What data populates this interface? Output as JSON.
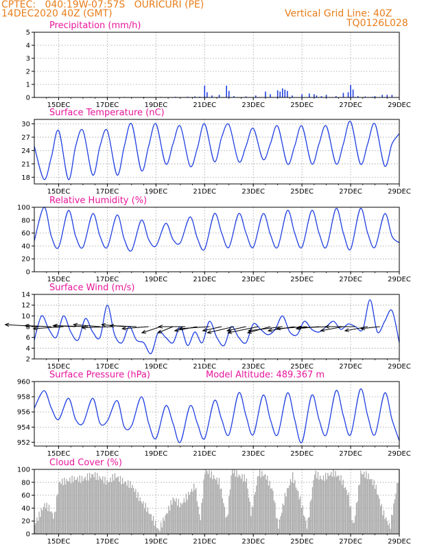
{
  "header": {
    "line1": "CPTEC:   040:19W-07:57S   OURICURI (PE)",
    "line2": "14DEC2020 40Z (GMT)",
    "right1": "Vertical Grid Line: 40Z",
    "right2": "TQ0126L028"
  },
  "colors": {
    "header": "#e87d1a",
    "title": "#e8159b",
    "series": "#1f3fe0",
    "cloud": "#a8a8a8"
  },
  "chart_data": [
    {
      "id": "precip",
      "type": "bar",
      "title": "Precipitation (mm/h)",
      "ylim": [
        0,
        5
      ],
      "yticks": [
        0,
        1,
        2,
        3,
        4,
        5
      ],
      "xticks": [
        "15DEC",
        "17DEC",
        "19DEC",
        "21DEC",
        "23DEC",
        "25DEC",
        "27DEC",
        "29DEC"
      ],
      "grid": true,
      "x": [
        14.0,
        14.6,
        15.4,
        16.3,
        17.0,
        17.7,
        18.5,
        19.2,
        19.8,
        20.3,
        20.6,
        20.8,
        21.0,
        21.1,
        21.3,
        21.6,
        21.9,
        22.0,
        22.2,
        22.7,
        23.1,
        23.5,
        23.7,
        24.0,
        24.1,
        24.2,
        24.3,
        24.4,
        24.6,
        25.0,
        25.3,
        25.5,
        25.6,
        25.8,
        26.0,
        26.4,
        26.7,
        26.9,
        27.0,
        27.1,
        27.3,
        27.6,
        27.9,
        28.0,
        28.3,
        28.5,
        28.7
      ],
      "values": [
        0.04,
        0.04,
        0.04,
        0.04,
        0.04,
        0.04,
        0.04,
        0.04,
        0.05,
        0.06,
        0.08,
        0.06,
        0.9,
        0.4,
        0.15,
        0.2,
        0.9,
        0.5,
        0.1,
        0.08,
        0.15,
        0.45,
        0.25,
        0.55,
        0.45,
        0.7,
        0.6,
        0.5,
        0.15,
        0.25,
        0.3,
        0.25,
        0.15,
        0.1,
        0.2,
        0.1,
        0.35,
        0.4,
        0.95,
        0.6,
        0.1,
        0.08,
        0.05,
        0.1,
        0.2,
        0.2,
        0.2
      ]
    },
    {
      "id": "temp",
      "type": "line",
      "title": "Surface Temperature (nC)",
      "ylim": [
        16.5,
        31
      ],
      "yticks": [
        18,
        21,
        24,
        27,
        30
      ],
      "xticks": [
        "15DEC",
        "17DEC",
        "19DEC",
        "21DEC",
        "23DEC",
        "25DEC",
        "27DEC",
        "29DEC"
      ],
      "grid": true,
      "x": [
        14.0,
        14.4,
        14.7,
        15.0,
        15.4,
        15.7,
        16.0,
        16.4,
        16.7,
        17.0,
        17.4,
        17.7,
        18.0,
        18.4,
        18.7,
        19.0,
        19.4,
        19.7,
        20.0,
        20.4,
        20.7,
        21.0,
        21.4,
        21.7,
        22.0,
        22.4,
        22.7,
        23.0,
        23.4,
        23.7,
        24.0,
        24.4,
        24.7,
        25.0,
        25.4,
        25.7,
        26.0,
        26.4,
        26.7,
        27.0,
        27.4,
        27.7,
        28.0,
        28.4,
        28.7,
        29.0
      ],
      "values": [
        25,
        17.5,
        22.5,
        28.5,
        17.5,
        25,
        28.5,
        18.5,
        25,
        28.5,
        18.5,
        25,
        30,
        19.5,
        25,
        30,
        21,
        25.5,
        29.5,
        20.5,
        24.5,
        30,
        21.5,
        27,
        29.8,
        21.5,
        25,
        29,
        22,
        25.5,
        29.5,
        21,
        25,
        29.5,
        21,
        25.5,
        29.5,
        21,
        25.5,
        30.5,
        21,
        25.5,
        30,
        20.5,
        25.5,
        27.8
      ]
    },
    {
      "id": "rh",
      "type": "line",
      "title": "Relative Humidity (%)",
      "ylim": [
        0,
        100
      ],
      "yticks": [
        0,
        20,
        40,
        60,
        80,
        100
      ],
      "xticks": [
        "15DEC",
        "17DEC",
        "19DEC",
        "21DEC",
        "23DEC",
        "25DEC",
        "27DEC",
        "29DEC"
      ],
      "grid": true,
      "x": [
        14.0,
        14.4,
        14.7,
        15.0,
        15.4,
        15.7,
        16.0,
        16.4,
        16.7,
        17.0,
        17.4,
        17.7,
        18.0,
        18.4,
        18.7,
        19.0,
        19.4,
        19.7,
        20.0,
        20.4,
        20.7,
        21.0,
        21.4,
        21.7,
        22.0,
        22.4,
        22.7,
        23.0,
        23.4,
        23.7,
        24.0,
        24.4,
        24.7,
        25.0,
        25.4,
        25.7,
        26.0,
        26.4,
        26.7,
        27.0,
        27.4,
        27.7,
        28.0,
        28.4,
        28.7,
        29.0
      ],
      "values": [
        48,
        100,
        55,
        38,
        95,
        55,
        38,
        90,
        55,
        38,
        88,
        50,
        33,
        80,
        50,
        40,
        75,
        50,
        45,
        85,
        52,
        35,
        90,
        60,
        38,
        90,
        60,
        38,
        90,
        58,
        38,
        95,
        60,
        38,
        95,
        60,
        38,
        98,
        60,
        35,
        98,
        60,
        38,
        90,
        55,
        45
      ]
    },
    {
      "id": "wind",
      "type": "line",
      "title": "Surface Wind (m/s)",
      "ylim": [
        2,
        14
      ],
      "yticks": [
        2,
        4,
        6,
        8,
        10,
        12,
        14
      ],
      "xticks": [
        "15DEC",
        "17DEC",
        "19DEC",
        "21DEC",
        "23DEC",
        "25DEC",
        "27DEC",
        "29DEC"
      ],
      "grid": true,
      "x": [
        14.0,
        14.3,
        14.6,
        14.9,
        15.2,
        15.5,
        15.8,
        16.1,
        16.4,
        16.7,
        17.0,
        17.3,
        17.6,
        17.9,
        18.2,
        18.5,
        18.8,
        19.1,
        19.4,
        19.7,
        20.0,
        20.3,
        20.6,
        20.9,
        21.2,
        21.5,
        21.8,
        22.1,
        22.4,
        22.7,
        23.0,
        23.3,
        23.6,
        23.9,
        24.2,
        24.5,
        24.8,
        25.1,
        25.4,
        25.7,
        26.0,
        26.3,
        26.6,
        26.9,
        27.2,
        27.5,
        27.8,
        28.1,
        28.4,
        28.7,
        29.0
      ],
      "values": [
        5.5,
        10,
        7.5,
        6,
        10,
        7,
        5.5,
        9.5,
        7,
        6,
        12,
        6.5,
        5,
        8,
        5.5,
        5,
        3,
        7,
        6,
        5,
        8,
        4.5,
        7,
        5,
        9,
        6,
        4.5,
        8,
        6,
        5,
        8.5,
        7.5,
        6.5,
        7.5,
        10,
        7,
        6.5,
        9,
        7.5,
        7,
        8,
        9,
        7.5,
        8.5,
        8,
        7.5,
        13,
        7,
        9,
        11,
        5
      ]
    },
    {
      "id": "press",
      "type": "line",
      "title": "Surface Pressure (hPa)",
      "annotation": "Model Altitude: 489.367 m",
      "ylim": [
        951.5,
        960
      ],
      "yticks": [
        952,
        954,
        956,
        958,
        960
      ],
      "xticks": [
        "15DEC",
        "17DEC",
        "19DEC",
        "21DEC",
        "23DEC",
        "25DEC",
        "27DEC",
        "29DEC"
      ],
      "grid": true,
      "x": [
        14.0,
        14.4,
        14.7,
        15.0,
        15.4,
        15.7,
        16.0,
        16.4,
        16.7,
        17.0,
        17.4,
        17.7,
        18.0,
        18.4,
        18.7,
        19.0,
        19.4,
        19.7,
        20.0,
        20.4,
        20.7,
        21.0,
        21.4,
        21.7,
        22.0,
        22.4,
        22.7,
        23.0,
        23.4,
        23.7,
        24.0,
        24.4,
        24.7,
        25.0,
        25.4,
        25.7,
        26.0,
        26.4,
        26.7,
        27.0,
        27.4,
        27.7,
        28.0,
        28.4,
        28.7,
        29.0
      ],
      "values": [
        956.5,
        958.8,
        956.5,
        955,
        957.8,
        955,
        954.5,
        957.8,
        954.5,
        954.8,
        957.5,
        954,
        954.2,
        958,
        954.5,
        952.5,
        956.8,
        954.5,
        952,
        956.8,
        954.5,
        952.5,
        957.5,
        955,
        953,
        958.5,
        955.5,
        953,
        958.2,
        955,
        953,
        958.5,
        955,
        952,
        958.2,
        955,
        953,
        958.8,
        955.5,
        953,
        959,
        955.5,
        953,
        958.5,
        955,
        952.2
      ]
    },
    {
      "id": "cloud",
      "type": "area",
      "title": "Cloud Cover (%)",
      "ylim": [
        0,
        100
      ],
      "yticks": [
        0,
        20,
        40,
        60,
        80,
        100
      ],
      "xticks": [
        "15DEC",
        "17DEC",
        "19DEC",
        "21DEC",
        "23DEC",
        "25DEC",
        "27DEC",
        "29DEC"
      ],
      "grid": true,
      "x": [
        14.0,
        14.2,
        14.4,
        14.6,
        14.8,
        15.0,
        15.3,
        15.6,
        16.0,
        16.4,
        16.8,
        17.0,
        17.3,
        17.6,
        18.0,
        18.3,
        18.6,
        18.9,
        19.1,
        19.4,
        19.7,
        20.0,
        20.3,
        20.6,
        20.8,
        21.0,
        21.3,
        21.6,
        21.9,
        22.1,
        22.4,
        22.7,
        22.9,
        23.2,
        23.5,
        23.8,
        24.0,
        24.3,
        24.6,
        24.9,
        25.2,
        25.5,
        25.8,
        26.0,
        26.3,
        26.6,
        26.9,
        27.1,
        27.4,
        27.7,
        28.0,
        28.3,
        28.6,
        29.0
      ],
      "values": [
        15,
        30,
        45,
        40,
        25,
        80,
        82,
        85,
        85,
        92,
        85,
        80,
        90,
        82,
        75,
        55,
        40,
        20,
        5,
        30,
        55,
        45,
        60,
        75,
        20,
        100,
        90,
        80,
        20,
        100,
        90,
        85,
        30,
        95,
        90,
        65,
        10,
        60,
        90,
        55,
        10,
        95,
        85,
        90,
        95,
        85,
        60,
        10,
        95,
        90,
        75,
        35,
        10,
        100
      ]
    }
  ],
  "wind_vectors": {
    "x": [
      14.2,
      14.7,
      15.2,
      15.7,
      16.2,
      16.7,
      17.2,
      17.7,
      18.2,
      18.7,
      19.2,
      19.7,
      20.2,
      20.7,
      21.2,
      21.7,
      22.2,
      22.7,
      23.2,
      23.7,
      24.2,
      24.7,
      25.2,
      25.7,
      26.2,
      26.7,
      27.2,
      27.7,
      28.2
    ],
    "u": [
      -9,
      -7,
      -8,
      -6,
      -9,
      -7,
      -8,
      -6,
      -7,
      -7,
      -5,
      -4,
      -7,
      -6,
      -8,
      -5,
      -7,
      -5,
      -8,
      -6,
      -9,
      -7,
      -8,
      -6,
      -9,
      -6,
      -8,
      -6,
      -5
    ],
    "v": [
      1,
      0.5,
      -1,
      0.5,
      0.5,
      1,
      -0.5,
      1,
      0.5,
      -1,
      -3,
      -3,
      0,
      -2,
      -1,
      -2,
      -3,
      -2,
      -3,
      -3,
      -2,
      -2,
      -1,
      -1,
      -0.5,
      -2,
      0,
      -2,
      -1
    ]
  }
}
